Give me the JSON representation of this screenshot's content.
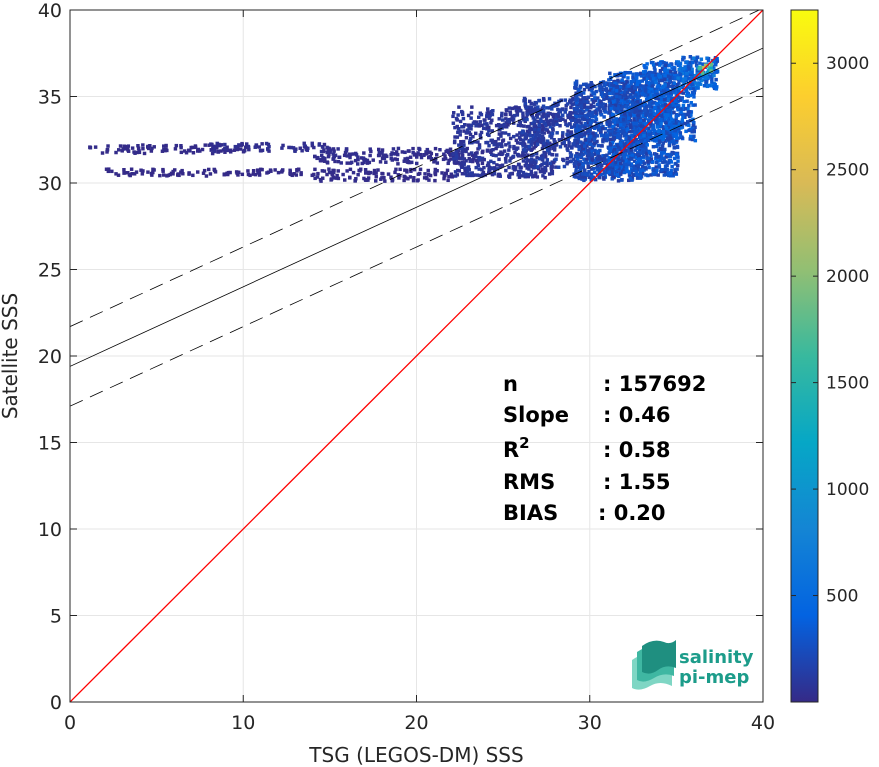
{
  "chart_data": {
    "type": "heatmap",
    "xlabel": "TSG (LEGOS-DM) SSS",
    "ylabel": "Satellite SSS",
    "xlim": [
      0,
      40
    ],
    "ylim": [
      0,
      40
    ],
    "xticks": [
      "0",
      "10",
      "20",
      "30",
      "40"
    ],
    "yticks": [
      "0",
      "5",
      "10",
      "15",
      "20",
      "25",
      "30",
      "35",
      "40"
    ],
    "grid": true,
    "colorbar": {
      "range": [
        0,
        3250
      ],
      "ticks": [
        "500",
        "1000",
        "1500",
        "2000",
        "2500",
        "3000"
      ],
      "colormap": "parula"
    },
    "reference_line": {
      "slope": 1,
      "intercept": 0,
      "color": "#ff0000"
    },
    "regression_fit": {
      "slope": 0.46,
      "intercept": 19.4,
      "color": "#000000"
    },
    "confidence_band": {
      "offset": 2.3,
      "style": "dashed"
    },
    "density_clusters": [
      {
        "x": [
          1,
          10
        ],
        "y": [
          31.8,
          32.3
        ],
        "count": 20
      },
      {
        "x": [
          8,
          15
        ],
        "y": [
          31.9,
          32.4
        ],
        "count": 70
      },
      {
        "x": [
          2,
          14
        ],
        "y": [
          30.5,
          30.9
        ],
        "count": 8
      },
      {
        "x": [
          14,
          24
        ],
        "y": [
          31.2,
          32.1
        ],
        "count": 50
      },
      {
        "x": [
          14,
          22
        ],
        "y": [
          30.2,
          30.9
        ],
        "count": 30
      },
      {
        "x": [
          22,
          28
        ],
        "y": [
          30.4,
          34.5
        ],
        "count": 150
      },
      {
        "x": [
          26,
          30
        ],
        "y": [
          31,
          35
        ],
        "count": 250
      },
      {
        "x": [
          29,
          33
        ],
        "y": [
          30.2,
          36
        ],
        "count": 420
      },
      {
        "x": [
          31,
          35
        ],
        "y": [
          30.5,
          36.5
        ],
        "count": 520
      },
      {
        "x": [
          33,
          36
        ],
        "y": [
          32.5,
          37.1
        ],
        "count": 650
      },
      {
        "x": [
          35,
          37.3
        ],
        "y": [
          35.5,
          37.4
        ],
        "count": 900
      },
      {
        "x": [
          36.2,
          37
        ],
        "y": [
          36.4,
          37
        ],
        "count": 3000
      }
    ],
    "stats": [
      {
        "label": "n",
        "value": ": 157692"
      },
      {
        "label": "Slope",
        "value": ": 0.46"
      },
      {
        "label": "R",
        "sup": "2",
        "value": ": 0.58"
      },
      {
        "label": "RMS",
        "value": ": 1.55"
      },
      {
        "label": "BIAS",
        "value": ": 0.20"
      }
    ]
  },
  "logo": {
    "line1": "salinity",
    "line2": "pi-mep"
  }
}
